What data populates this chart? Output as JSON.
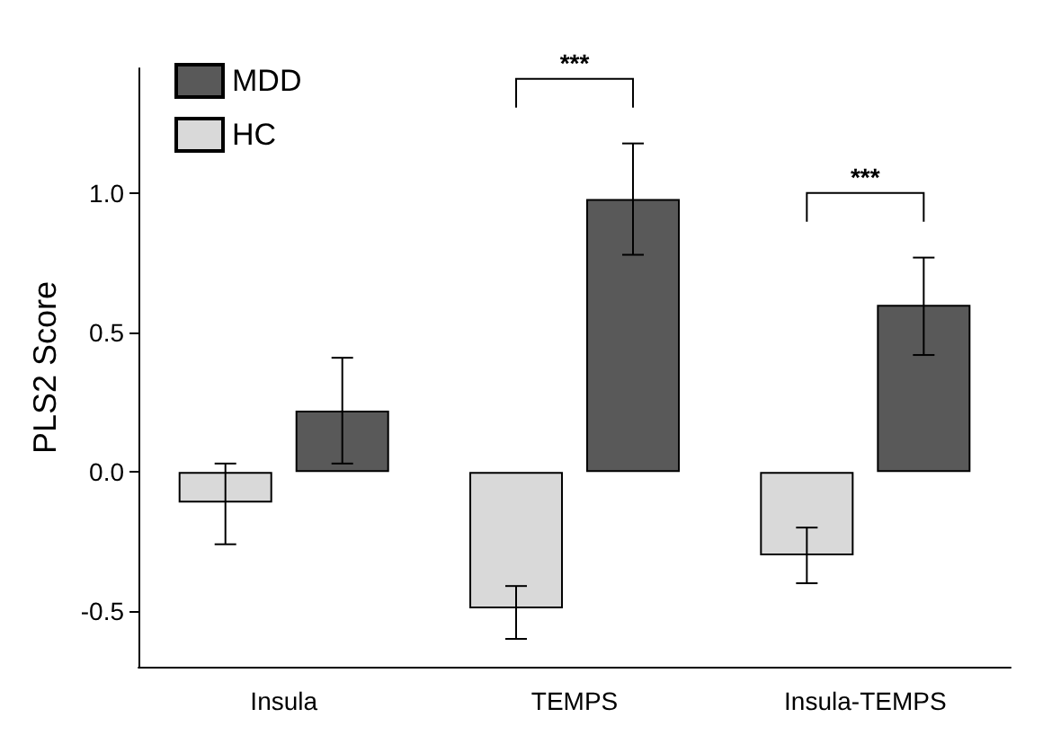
{
  "chart_data": {
    "type": "bar",
    "ylabel": "PLS2 Score",
    "categories": [
      "Insula",
      "TEMPS",
      "Insula-TEMPS"
    ],
    "series": [
      {
        "name": "HC",
        "color": "#d9d9d9",
        "values": [
          -0.11,
          -0.49,
          -0.3
        ],
        "errors": [
          [
            -0.26,
            0.03
          ],
          [
            -0.6,
            -0.41
          ],
          [
            -0.4,
            -0.2
          ]
        ]
      },
      {
        "name": "MDD",
        "color": "#595959",
        "values": [
          0.22,
          0.98,
          0.6
        ],
        "errors": [
          [
            0.03,
            0.41
          ],
          [
            0.78,
            1.18
          ],
          [
            0.42,
            0.77
          ]
        ]
      }
    ],
    "ylim": [
      -0.7,
      1.45
    ],
    "yticks": [
      {
        "value": -0.5,
        "label": "-0.5"
      },
      {
        "value": 0,
        "label": "0.0"
      },
      {
        "value": 0.5,
        "label": "0.5"
      },
      {
        "value": 1,
        "label": "1.0"
      }
    ],
    "grid": false,
    "legend": "top left",
    "annotations": [
      "***",
      "***"
    ]
  }
}
